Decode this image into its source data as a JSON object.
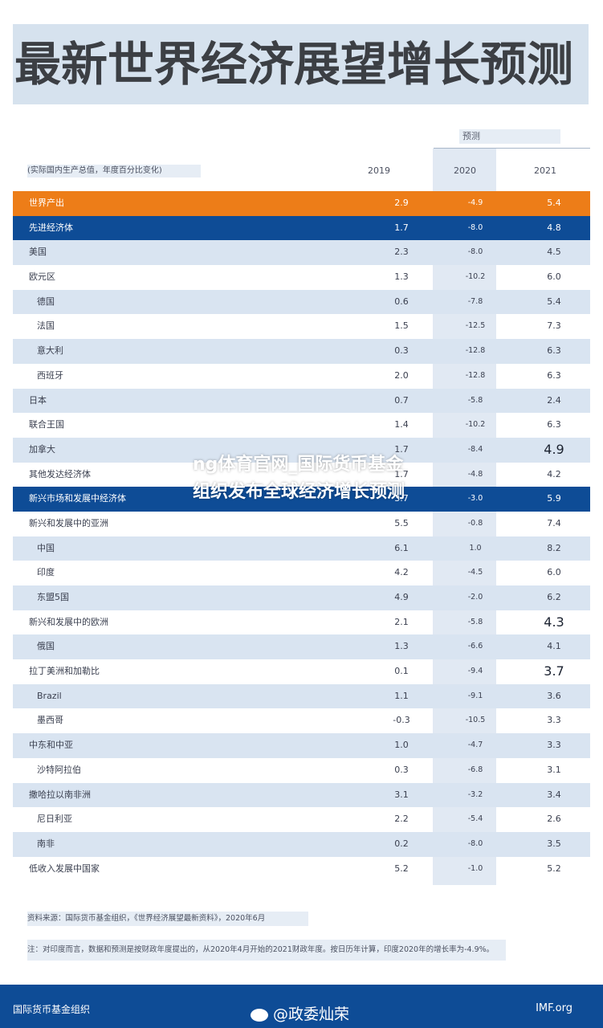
{
  "title": "最新世界经济展望增长预测",
  "forecast_label": "预测",
  "units": "(实际国内生产总值，年度百分比变化)",
  "years": [
    "2019",
    "2020",
    "2021"
  ],
  "rows": [
    {
      "name": "世界产出",
      "v2019": "2.9",
      "v2020": "-4.9",
      "v2021": "5.4",
      "style": "world"
    },
    {
      "name": "先进经济体",
      "v2019": "1.7",
      "v2020": "-8.0",
      "v2021": "4.8",
      "style": "head"
    },
    {
      "name": "美国",
      "v2019": "2.3",
      "v2020": "-8.0",
      "v2021": "4.5",
      "style": "alt"
    },
    {
      "name": "欧元区",
      "v2019": "1.3",
      "v2020": "-10.2",
      "v2021": "6.0",
      "style": "plain"
    },
    {
      "name": "德国",
      "v2019": "0.6",
      "v2020": "-7.8",
      "v2021": "5.4",
      "style": "alt",
      "sub": true
    },
    {
      "name": "法国",
      "v2019": "1.5",
      "v2020": "-12.5",
      "v2021": "7.3",
      "style": "plain",
      "sub": true
    },
    {
      "name": "意大利",
      "v2019": "0.3",
      "v2020": "-12.8",
      "v2021": "6.3",
      "style": "alt",
      "sub": true
    },
    {
      "name": "西班牙",
      "v2019": "2.0",
      "v2020": "-12.8",
      "v2021": "6.3",
      "style": "plain",
      "sub": true
    },
    {
      "name": "日本",
      "v2019": "0.7",
      "v2020": "-5.8",
      "v2021": "2.4",
      "style": "alt"
    },
    {
      "name": "联合王国",
      "v2019": "1.4",
      "v2020": "-10.2",
      "v2021": "6.3",
      "style": "plain"
    },
    {
      "name": "加拿大",
      "v2019": "1.7",
      "v2020": "-8.4",
      "v2021": "4.9",
      "style": "alt",
      "big": true
    },
    {
      "name": "其他发达经济体",
      "v2019": "1.7",
      "v2020": "-4.8",
      "v2021": "4.2",
      "style": "plain"
    },
    {
      "name": "新兴市场和发展中经济体",
      "v2019": "3.7",
      "v2020": "-3.0",
      "v2021": "5.9",
      "style": "head"
    },
    {
      "name": "新兴和发展中的亚洲",
      "v2019": "5.5",
      "v2020": "-0.8",
      "v2021": "7.4",
      "style": "plain"
    },
    {
      "name": "中国",
      "v2019": "6.1",
      "v2020": "1.0",
      "v2021": "8.2",
      "style": "alt",
      "sub": true
    },
    {
      "name": "印度",
      "v2019": "4.2",
      "v2020": "-4.5",
      "v2021": "6.0",
      "style": "plain",
      "sub": true
    },
    {
      "name": "东盟5国",
      "v2019": "4.9",
      "v2020": "-2.0",
      "v2021": "6.2",
      "style": "alt",
      "sub": true
    },
    {
      "name": "新兴和发展中的欧洲",
      "v2019": "2.1",
      "v2020": "-5.8",
      "v2021": "4.3",
      "style": "plain",
      "big": true
    },
    {
      "name": "俄国",
      "v2019": "1.3",
      "v2020": "-6.6",
      "v2021": "4.1",
      "style": "alt",
      "sub": true
    },
    {
      "name": "拉丁美洲和加勒比",
      "v2019": "0.1",
      "v2020": "-9.4",
      "v2021": "3.7",
      "style": "plain",
      "big": true
    },
    {
      "name": "Brazil",
      "v2019": "1.1",
      "v2020": "-9.1",
      "v2021": "3.6",
      "style": "alt",
      "sub": true
    },
    {
      "name": "墨西哥",
      "v2019": "-0.3",
      "v2020": "-10.5",
      "v2021": "3.3",
      "style": "plain",
      "sub": true
    },
    {
      "name": "中东和中亚",
      "v2019": "1.0",
      "v2020": "-4.7",
      "v2021": "3.3",
      "style": "alt"
    },
    {
      "name": "沙特阿拉伯",
      "v2019": "0.3",
      "v2020": "-6.8",
      "v2021": "3.1",
      "style": "plain",
      "sub": true
    },
    {
      "name": "撒哈拉以南非洲",
      "v2019": "3.1",
      "v2020": "-3.2",
      "v2021": "3.4",
      "style": "alt"
    },
    {
      "name": "尼日利亚",
      "v2019": "2.2",
      "v2020": "-5.4",
      "v2021": "2.6",
      "style": "plain",
      "sub": true
    },
    {
      "name": "南非",
      "v2019": "0.2",
      "v2020": "-8.0",
      "v2021": "3.5",
      "style": "alt",
      "sub": true
    },
    {
      "name": "低收入发展中国家",
      "v2019": "5.2",
      "v2020": "-1.0",
      "v2021": "5.2",
      "style": "plain"
    }
  ],
  "source": "资料来源：国际货币基金组织，《世界经济展望最新资料》，2020年6月",
  "note": "注：对印度而言，数据和预测是按财政年度提出的，从2020年4月开始的2021财政年度。按日历年计算，印度2020年的增长率为-4.9%。",
  "footer": {
    "org": "国际货币基金组织",
    "site": "IMF.org",
    "weibo": "@政委灿荣"
  },
  "overlay_text": "ng体育官网_国际货币基金组织发布全球经济增长预测"
}
